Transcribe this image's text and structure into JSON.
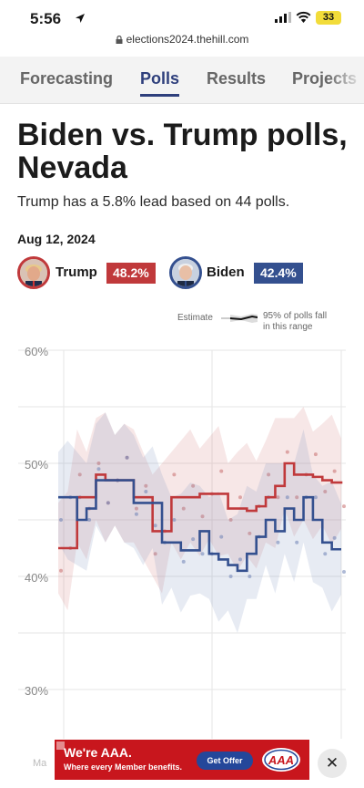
{
  "status": {
    "time": "5:56",
    "battery": "33"
  },
  "url": "elections2024.thehill.com",
  "nav": {
    "tabs": [
      {
        "label": "Forecasting",
        "active": false
      },
      {
        "label": "Polls",
        "active": true
      },
      {
        "label": "Results",
        "active": false
      },
      {
        "label": "Projects",
        "active": false
      }
    ]
  },
  "article": {
    "title": "Biden vs. Trump polls, Nevada",
    "subtitle": "Trump has a 5.8% lead based on 44 polls.",
    "date": "Aug 12, 2024"
  },
  "candidates": [
    {
      "name": "Trump",
      "pct": "48.2%",
      "color": "#c0393b"
    },
    {
      "name": "Biden",
      "pct": "42.4%",
      "color": "#34508f"
    }
  ],
  "legend": {
    "estimate": "Estimate",
    "range": "95% of polls fall in this range"
  },
  "chart_data": {
    "type": "line",
    "ylim": [
      30,
      60
    ],
    "yticks": [
      "60%",
      "50%",
      "40%",
      "30%"
    ],
    "series": [
      {
        "name": "Trump",
        "color": "#c0393b",
        "values": [
          42.5,
          42.5,
          47,
          47,
          49,
          48.5,
          48.5,
          48.5,
          47,
          47,
          44,
          44,
          47,
          47,
          47,
          47.3,
          47.3,
          47.3,
          46,
          46,
          45.8,
          46.2,
          47,
          48,
          50,
          49,
          49,
          48.8,
          48.5,
          48.3,
          48.2
        ]
      },
      {
        "name": "Biden",
        "color": "#34508f",
        "values": [
          47,
          47,
          45,
          46,
          48.5,
          48.5,
          48.5,
          48.5,
          46.5,
          46.5,
          46.5,
          43,
          43,
          42.3,
          42.3,
          44,
          42,
          41.5,
          41,
          40.5,
          42,
          43.5,
          45,
          44,
          46,
          45,
          47,
          45,
          43,
          42.4,
          42.4
        ]
      }
    ]
  },
  "ad": {
    "title": "We're AAA.",
    "subtitle": "Where every Member benefits.",
    "button": "Get Offer",
    "logo": "AAA"
  },
  "close": "✕",
  "footer_ghost": "Ma"
}
